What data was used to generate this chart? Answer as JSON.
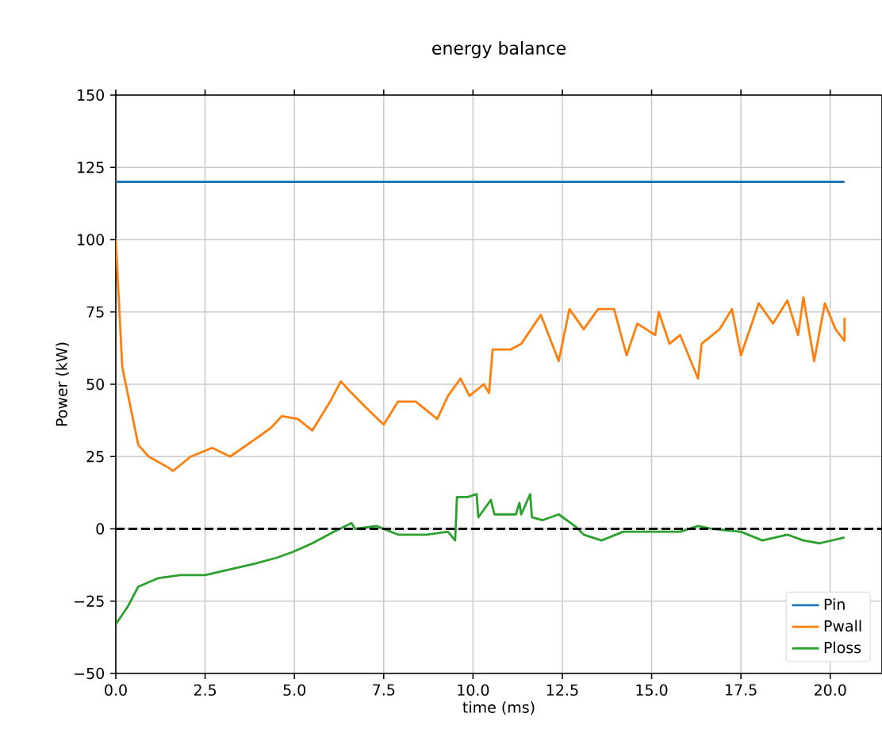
{
  "chart_data": {
    "type": "line",
    "title": "energy balance",
    "xlabel": "time (ms)",
    "ylabel": "Power (kW)",
    "xlim": [
      0,
      21.45
    ],
    "ylim": [
      -50,
      150
    ],
    "xticks": [
      {
        "value": 0,
        "label": "0.0"
      },
      {
        "value": 2.5,
        "label": "2.5"
      },
      {
        "value": 5,
        "label": "5.0"
      },
      {
        "value": 7.5,
        "label": "7.5"
      },
      {
        "value": 10,
        "label": "10.0"
      },
      {
        "value": 12.5,
        "label": "12.5"
      },
      {
        "value": 15,
        "label": "15.0"
      },
      {
        "value": 17.5,
        "label": "17.5"
      },
      {
        "value": 20,
        "label": "20.0"
      }
    ],
    "yticks": [
      {
        "value": -50,
        "label": "−50"
      },
      {
        "value": -25,
        "label": "−25"
      },
      0,
      25,
      50,
      75,
      100,
      125,
      150
    ],
    "grid": true,
    "legend": "bottom right",
    "ref_lines": [
      {
        "axis": "y",
        "value": 0,
        "color": "#000000",
        "line_style": "dashed"
      }
    ],
    "series": [
      {
        "name": "Pin",
        "color": "#1f77b4",
        "x": [
          0,
          20.4
        ],
        "values": [
          120,
          120
        ]
      },
      {
        "name": "Pwall",
        "color": "#ff7f0e",
        "x": [
          0,
          0.18,
          0.63,
          0.92,
          1.5,
          1.6,
          2.1,
          2.7,
          3.2,
          3.9,
          4.35,
          4.65,
          5.1,
          5.5,
          6.0,
          6.3,
          6.6,
          7.0,
          7.5,
          7.9,
          8.4,
          9.0,
          9.3,
          9.65,
          9.9,
          10.3,
          10.45,
          10.55,
          11.05,
          11.35,
          11.9,
          12.4,
          12.7,
          13.1,
          13.5,
          13.95,
          14.3,
          14.6,
          15.1,
          15.2,
          15.5,
          15.8,
          16.3,
          16.4,
          16.9,
          17.25,
          17.5,
          18.0,
          18.4,
          18.8,
          19.1,
          19.25,
          19.55,
          19.85,
          20.15,
          20.4,
          20.4
        ],
        "values": [
          100,
          56,
          29,
          25,
          21,
          20,
          25,
          28,
          25,
          31,
          35,
          39,
          38,
          34,
          44,
          51,
          47,
          42,
          36,
          44,
          44,
          38,
          46,
          52,
          46,
          50,
          47,
          62,
          62,
          64,
          74,
          58,
          76,
          69,
          76,
          76,
          60,
          71,
          67,
          75,
          64,
          67,
          52,
          64,
          69,
          76,
          60,
          78,
          71,
          79,
          67,
          80,
          58,
          78,
          69,
          65,
          73
        ]
      },
      {
        "name": "Ploss",
        "color": "#2ca02c",
        "x": [
          0,
          0.33,
          0.63,
          1.2,
          1.8,
          2.5,
          3.2,
          3.9,
          4.5,
          4.95,
          5.5,
          6.1,
          6.6,
          6.7,
          7.3,
          7.9,
          8.7,
          9.3,
          9.5,
          9.55,
          9.85,
          10.1,
          10.15,
          10.5,
          10.6,
          11.2,
          11.3,
          11.35,
          11.6,
          11.65,
          11.95,
          12.4,
          12.85,
          13.1,
          13.6,
          14.2,
          15.0,
          15.8,
          16.3,
          16.7,
          17.5,
          18.1,
          18.8,
          19.25,
          19.7,
          20.4
        ],
        "values": [
          -33,
          -27,
          -20,
          -17,
          -16,
          -16,
          -14,
          -12,
          -10,
          -8,
          -5,
          -1,
          2,
          0,
          1,
          -2,
          -2,
          -1,
          -4,
          11,
          11,
          12,
          4,
          10,
          5,
          5,
          9,
          5,
          12,
          4,
          3,
          5,
          1,
          -2,
          -4,
          -1,
          -1,
          -1,
          1,
          0,
          -1,
          -4,
          -2,
          -4,
          -5,
          -3
        ]
      }
    ]
  }
}
